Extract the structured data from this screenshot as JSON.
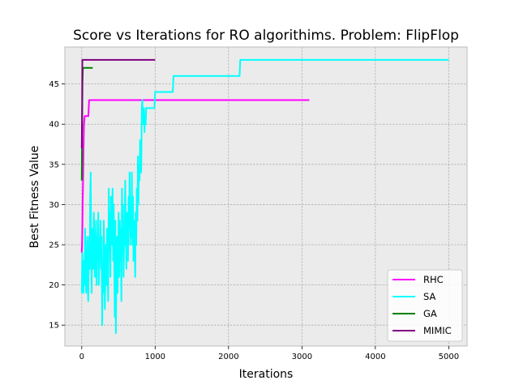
{
  "chart_data": {
    "type": "line",
    "title": "Score vs Iterations for RO algorithims.  Problem: FlipFlop",
    "xlabel": "Iterations",
    "ylabel": "Best Fitness Value",
    "xlim": [
      -230,
      5250
    ],
    "ylim": [
      12.4,
      49.6
    ],
    "xticks": [
      0,
      1000,
      2000,
      3000,
      4000,
      5000
    ],
    "yticks": [
      15,
      20,
      25,
      30,
      35,
      40,
      45
    ],
    "grid": true,
    "legend_position": "lower-right",
    "background_color": "#ebebeb",
    "series": [
      {
        "name": "RHC",
        "color": "#ff00ff",
        "points": [
          [
            0,
            24
          ],
          [
            4,
            25
          ],
          [
            8,
            27
          ],
          [
            12,
            30
          ],
          [
            18,
            33
          ],
          [
            22,
            36
          ],
          [
            26,
            38
          ],
          [
            30,
            40
          ],
          [
            40,
            41
          ],
          [
            60,
            41
          ],
          [
            90,
            41
          ],
          [
            100,
            43
          ],
          [
            3100,
            43
          ]
        ]
      },
      {
        "name": "SA",
        "color": "#00ffff",
        "points": [
          [
            0,
            19
          ],
          [
            8,
            24
          ],
          [
            15,
            21
          ],
          [
            22,
            19
          ],
          [
            30,
            23
          ],
          [
            38,
            20
          ],
          [
            45,
            27
          ],
          [
            52,
            22
          ],
          [
            60,
            19
          ],
          [
            68,
            23
          ],
          [
            75,
            26
          ],
          [
            82,
            20
          ],
          [
            88,
            18
          ],
          [
            95,
            24
          ],
          [
            102,
            26
          ],
          [
            108,
            22
          ],
          [
            115,
            31
          ],
          [
            122,
            34
          ],
          [
            128,
            25
          ],
          [
            135,
            19
          ],
          [
            142,
            24
          ],
          [
            150,
            27
          ],
          [
            158,
            22
          ],
          [
            165,
            29
          ],
          [
            172,
            25
          ],
          [
            180,
            21
          ],
          [
            188,
            24
          ],
          [
            195,
            28
          ],
          [
            202,
            20
          ],
          [
            210,
            26
          ],
          [
            218,
            23
          ],
          [
            225,
            29
          ],
          [
            232,
            20
          ],
          [
            240,
            25
          ],
          [
            248,
            24
          ],
          [
            255,
            28
          ],
          [
            262,
            22
          ],
          [
            270,
            26
          ],
          [
            278,
            15
          ],
          [
            285,
            23
          ],
          [
            292,
            19
          ],
          [
            300,
            28
          ],
          [
            308,
            24
          ],
          [
            315,
            17
          ],
          [
            322,
            22
          ],
          [
            330,
            25
          ],
          [
            338,
            20
          ],
          [
            345,
            27
          ],
          [
            352,
            23
          ],
          [
            360,
            18
          ],
          [
            368,
            32
          ],
          [
            375,
            24
          ],
          [
            382,
            29
          ],
          [
            390,
            21
          ],
          [
            398,
            31
          ],
          [
            405,
            26
          ],
          [
            412,
            25
          ],
          [
            420,
            32
          ],
          [
            428,
            23
          ],
          [
            435,
            30
          ],
          [
            442,
            24
          ],
          [
            450,
            16
          ],
          [
            458,
            28
          ],
          [
            465,
            14
          ],
          [
            472,
            22
          ],
          [
            480,
            26
          ],
          [
            488,
            19
          ],
          [
            495,
            24
          ],
          [
            502,
            29
          ],
          [
            510,
            21
          ],
          [
            518,
            28
          ],
          [
            525,
            23
          ],
          [
            532,
            27
          ],
          [
            540,
            18
          ],
          [
            548,
            32
          ],
          [
            555,
            24
          ],
          [
            562,
            30
          ],
          [
            570,
            21
          ],
          [
            578,
            27
          ],
          [
            585,
            25
          ],
          [
            592,
            33
          ],
          [
            600,
            27
          ],
          [
            608,
            22
          ],
          [
            615,
            29
          ],
          [
            622,
            28
          ],
          [
            630,
            23
          ],
          [
            638,
            31
          ],
          [
            645,
            27
          ],
          [
            652,
            34
          ],
          [
            660,
            25
          ],
          [
            668,
            29
          ],
          [
            675,
            26
          ],
          [
            682,
            34
          ],
          [
            690,
            25
          ],
          [
            698,
            31
          ],
          [
            705,
            23
          ],
          [
            712,
            28
          ],
          [
            720,
            26
          ],
          [
            728,
            21
          ],
          [
            735,
            29
          ],
          [
            742,
            25
          ],
          [
            750,
            32
          ],
          [
            758,
            28
          ],
          [
            765,
            36
          ],
          [
            772,
            30
          ],
          [
            780,
            35
          ],
          [
            788,
            33
          ],
          [
            795,
            38
          ],
          [
            802,
            36
          ],
          [
            810,
            34
          ],
          [
            818,
            42
          ],
          [
            825,
            43
          ],
          [
            832,
            40
          ],
          [
            840,
            41
          ],
          [
            848,
            42
          ],
          [
            855,
            39
          ],
          [
            862,
            41
          ],
          [
            870,
            40
          ],
          [
            878,
            42
          ],
          [
            900,
            42
          ],
          [
            990,
            42
          ],
          [
            1000,
            44
          ],
          [
            1240,
            44
          ],
          [
            1250,
            46
          ],
          [
            2150,
            46
          ],
          [
            2160,
            48
          ],
          [
            5000,
            48
          ]
        ]
      },
      {
        "name": "GA",
        "color": "#008000",
        "points": [
          [
            0,
            33
          ],
          [
            5,
            40
          ],
          [
            10,
            45
          ],
          [
            15,
            47
          ],
          [
            150,
            47
          ]
        ]
      },
      {
        "name": "MIMIC",
        "color": "#800080",
        "points": [
          [
            0,
            37
          ],
          [
            4,
            41
          ],
          [
            8,
            48
          ],
          [
            1000,
            48
          ]
        ]
      }
    ]
  }
}
